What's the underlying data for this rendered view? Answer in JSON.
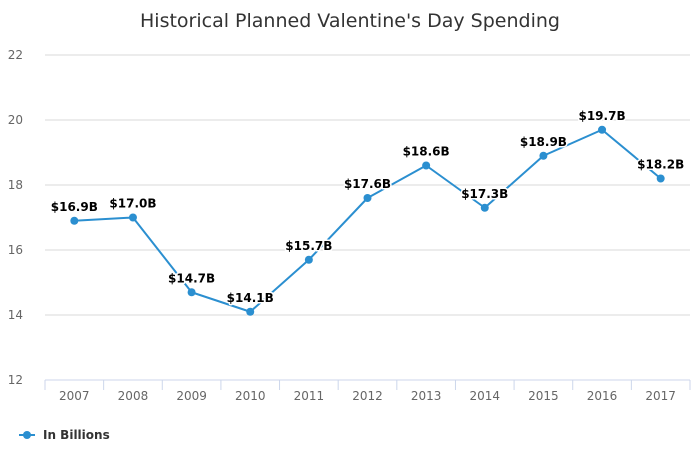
{
  "chart_data": {
    "type": "line",
    "title": "Historical Planned Valentine's Day Spending",
    "xlabel": "",
    "ylabel": "",
    "categories": [
      "2007",
      "2008",
      "2009",
      "2010",
      "2011",
      "2012",
      "2013",
      "2014",
      "2015",
      "2016",
      "2017"
    ],
    "series": [
      {
        "name": "In Billions",
        "values": [
          16.9,
          17.0,
          14.7,
          14.1,
          15.7,
          17.6,
          18.6,
          17.3,
          18.9,
          19.7,
          18.2
        ],
        "data_labels": [
          "$16.9B",
          "$17.0B",
          "$14.7B",
          "$14.1B",
          "$15.7B",
          "$17.6B",
          "$18.6B",
          "$17.3B",
          "$18.9B",
          "$19.7B",
          "$18.2B"
        ],
        "color": "#2b8fd0"
      }
    ],
    "ylim": [
      12,
      22
    ],
    "yticks": [
      "12",
      "14",
      "16",
      "18",
      "20",
      "22"
    ],
    "grid": true,
    "legend": "bottom-left"
  },
  "colors": {
    "series": "#2b8fd0",
    "grid": "#d8d8d8",
    "axis": "#ccd6eb"
  }
}
